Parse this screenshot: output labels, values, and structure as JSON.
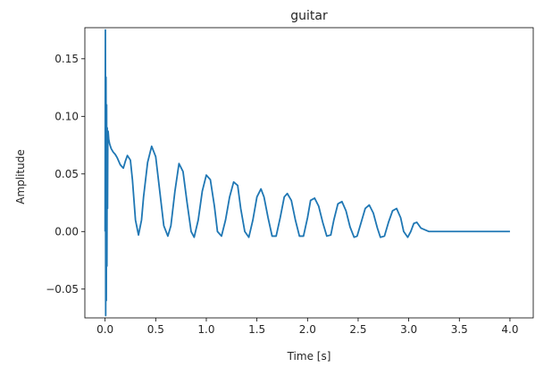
{
  "chart_data": {
    "type": "line",
    "title": "guitar",
    "xlabel": "Time [s]",
    "ylabel": "Amplitude",
    "xlim": [
      -0.2,
      4.23
    ],
    "ylim": [
      -0.075,
      0.177
    ],
    "xticks": [
      0.0,
      0.5,
      1.0,
      1.5,
      2.0,
      2.5,
      3.0,
      3.5,
      4.0
    ],
    "xtick_labels": [
      "0.0",
      "0.5",
      "1.0",
      "1.5",
      "2.0",
      "2.5",
      "3.0",
      "3.5",
      "4.0"
    ],
    "yticks": [
      -0.05,
      0.0,
      0.05,
      0.1,
      0.15
    ],
    "ytick_labels": [
      "−0.05",
      "0.00",
      "0.05",
      "0.10",
      "0.15"
    ],
    "grid": false,
    "series": [
      {
        "color": "#1f77b4",
        "x": [
          0.0,
          0.003,
          0.006,
          0.009,
          0.012,
          0.015,
          0.018,
          0.021,
          0.024,
          0.027,
          0.03,
          0.036,
          0.045,
          0.06,
          0.08,
          0.1,
          0.12,
          0.15,
          0.18,
          0.2,
          0.22,
          0.25,
          0.27,
          0.3,
          0.33,
          0.36,
          0.38,
          0.42,
          0.46,
          0.5,
          0.54,
          0.58,
          0.62,
          0.65,
          0.69,
          0.73,
          0.77,
          0.81,
          0.85,
          0.88,
          0.92,
          0.96,
          1.0,
          1.04,
          1.08,
          1.11,
          1.15,
          1.19,
          1.23,
          1.27,
          1.31,
          1.34,
          1.38,
          1.42,
          1.46,
          1.5,
          1.54,
          1.57,
          1.61,
          1.65,
          1.69,
          1.73,
          1.77,
          1.8,
          1.84,
          1.88,
          1.92,
          1.96,
          2.0,
          2.03,
          2.07,
          2.11,
          2.15,
          2.19,
          2.23,
          2.26,
          2.3,
          2.34,
          2.38,
          2.42,
          2.46,
          2.49,
          2.53,
          2.57,
          2.61,
          2.65,
          2.69,
          2.72,
          2.76,
          2.8,
          2.84,
          2.88,
          2.92,
          2.95,
          2.99,
          3.02,
          3.05,
          3.08,
          3.12,
          3.2,
          3.5,
          4.0
        ],
        "y": [
          0.0,
          0.175,
          -0.073,
          0.134,
          -0.06,
          0.11,
          -0.03,
          0.09,
          0.02,
          0.085,
          0.087,
          0.08,
          0.076,
          0.072,
          0.069,
          0.067,
          0.064,
          0.058,
          0.055,
          0.061,
          0.066,
          0.062,
          0.045,
          0.01,
          -0.003,
          0.01,
          0.03,
          0.06,
          0.074,
          0.065,
          0.035,
          0.005,
          -0.004,
          0.005,
          0.035,
          0.059,
          0.052,
          0.025,
          0.0,
          -0.005,
          0.01,
          0.035,
          0.049,
          0.045,
          0.022,
          0.0,
          -0.004,
          0.01,
          0.03,
          0.043,
          0.04,
          0.02,
          0.0,
          -0.005,
          0.01,
          0.03,
          0.037,
          0.03,
          0.012,
          -0.004,
          -0.004,
          0.012,
          0.03,
          0.033,
          0.027,
          0.01,
          -0.004,
          -0.004,
          0.012,
          0.027,
          0.029,
          0.022,
          0.008,
          -0.004,
          -0.003,
          0.01,
          0.024,
          0.026,
          0.018,
          0.004,
          -0.005,
          -0.004,
          0.008,
          0.02,
          0.023,
          0.016,
          0.003,
          -0.005,
          -0.004,
          0.008,
          0.018,
          0.02,
          0.012,
          0.0,
          -0.005,
          0.0,
          0.007,
          0.008,
          0.003,
          0.0,
          0.0,
          0.0
        ]
      }
    ]
  }
}
